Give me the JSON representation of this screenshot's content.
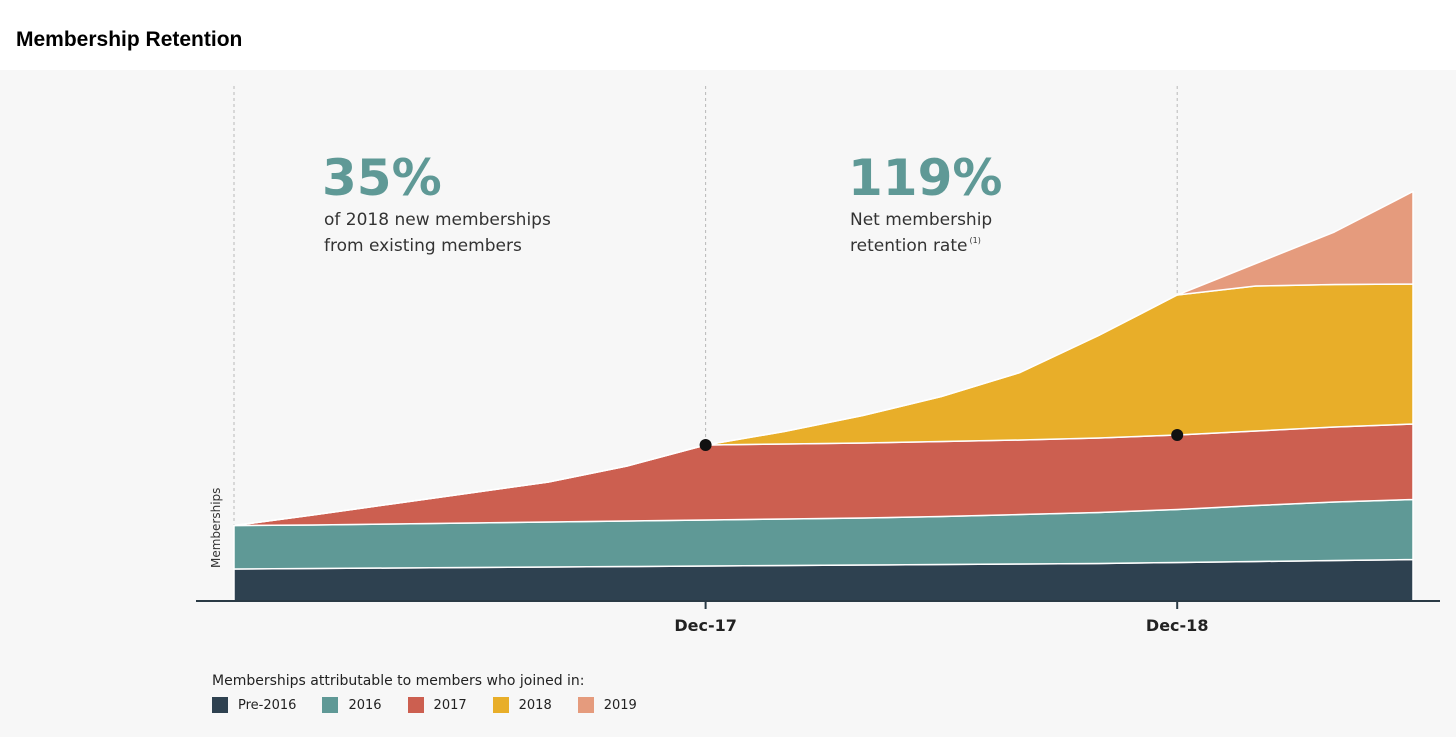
{
  "page": {
    "title": "Membership Retention"
  },
  "colors": {
    "pre_2016": "#2e4150",
    "y2016": "#5f9996",
    "y2017": "#cc5f50",
    "y2018": "#e8ae29",
    "y2019": "#e59b7d",
    "callout": "#5f9996",
    "axis": "#2a3a45"
  },
  "callouts": [
    {
      "value": "35%",
      "lines": [
        "of 2018 new memberships",
        "from existing members"
      ]
    },
    {
      "value": "119%",
      "lines": [
        "Net membership",
        "retention rate"
      ],
      "superscript": "(1)"
    }
  ],
  "chart_data": {
    "type": "area",
    "stacked": true,
    "title": "Membership Retention",
    "ylabel": "Memberships",
    "xlabel": "",
    "x_ticks": [
      {
        "label": "Dec-17",
        "index": 6
      },
      {
        "label": "Dec-18",
        "index": 12
      }
    ],
    "vertical_reference_lines_at_index": [
      0,
      6,
      12
    ],
    "x": [
      0,
      1,
      2,
      3,
      4,
      5,
      6,
      7,
      8,
      9,
      10,
      11,
      12,
      13,
      14,
      15
    ],
    "ylim": [
      0,
      100
    ],
    "grid": false,
    "legend_position": "bottom",
    "legend_title": "Memberships attributable to members who joined in:",
    "series": [
      {
        "name": "Pre-2016",
        "color_key": "pre_2016",
        "values": [
          6.4,
          6.5,
          6.6,
          6.7,
          6.8,
          6.9,
          7.0,
          7.1,
          7.2,
          7.3,
          7.4,
          7.5,
          7.7,
          7.9,
          8.1,
          8.3
        ]
      },
      {
        "name": "2016",
        "color_key": "y2016",
        "values": [
          8.7,
          8.7,
          8.8,
          8.9,
          9.0,
          9.1,
          9.2,
          9.3,
          9.4,
          9.6,
          9.9,
          10.2,
          10.6,
          11.2,
          11.7,
          12.0
        ]
      },
      {
        "name": "2017",
        "color_key": "y2017",
        "values": [
          0.0,
          2.0,
          4.0,
          6.0,
          8.0,
          11.0,
          15.0,
          15.0,
          15.0,
          15.0,
          14.9,
          14.9,
          14.9,
          14.9,
          15.0,
          15.1
        ]
      },
      {
        "name": "2018",
        "color_key": "y2018",
        "values": [
          0,
          0,
          0,
          0,
          0,
          0,
          0,
          2.5,
          5.5,
          9.0,
          13.5,
          20.5,
          28.0,
          29.0,
          28.5,
          28.0
        ]
      },
      {
        "name": "2019",
        "color_key": "y2019",
        "values": [
          0,
          0,
          0,
          0,
          0,
          0,
          0,
          0,
          0,
          0,
          0,
          0,
          0,
          4.5,
          10.5,
          18.5
        ]
      }
    ],
    "highlight_points": [
      {
        "index": 6,
        "stack_level": 3
      },
      {
        "index": 12,
        "stack_level": 3
      }
    ]
  }
}
